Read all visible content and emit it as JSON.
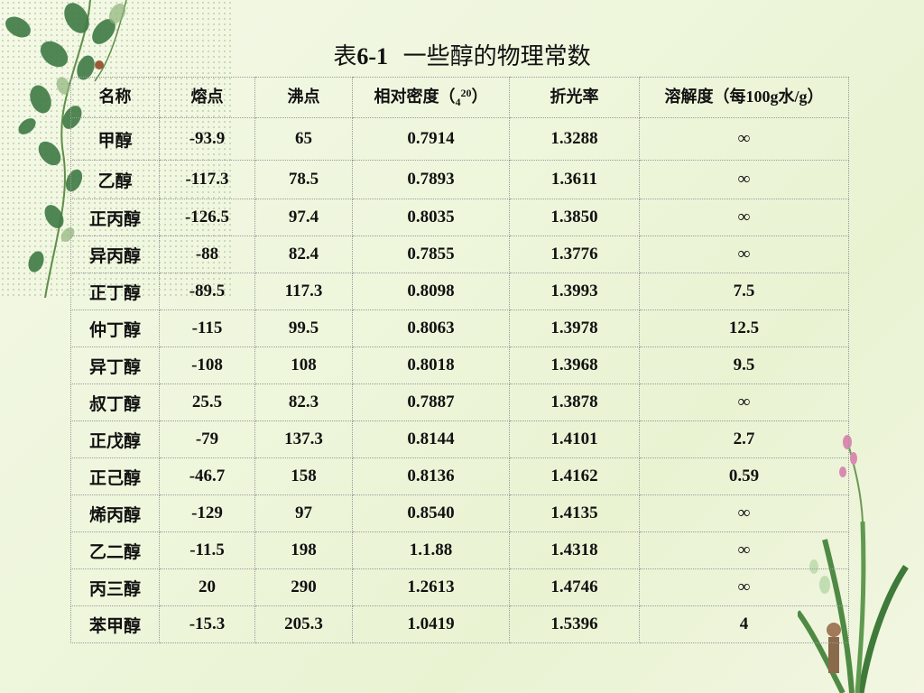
{
  "title": {
    "prefix": "表",
    "number": "6-1",
    "text": "一些醇的物理常数"
  },
  "table": {
    "headers": {
      "name": "名称",
      "mp": "熔点",
      "bp": "沸点",
      "density_label": "相对密度（",
      "density_sub": "4",
      "density_sup": "20",
      "density_close": "）",
      "refractive": "折光率",
      "solubility_label": "溶解度（每",
      "solubility_num": "100g",
      "solubility_water": "水",
      "solubility_unit": "/g",
      "solubility_close": "）"
    },
    "rows": [
      {
        "name": "甲醇",
        "mp": "-93.9",
        "bp": "65",
        "density": "0.7914",
        "refractive": "1.3288",
        "solubility": "∞"
      },
      {
        "name": "乙醇",
        "mp": "-117.3",
        "bp": "78.5",
        "density": "0.7893",
        "refractive": "1.3611",
        "solubility": "∞"
      },
      {
        "name": "正丙醇",
        "mp": "-126.5",
        "bp": "97.4",
        "density": "0.8035",
        "refractive": "1.3850",
        "solubility": "∞"
      },
      {
        "name": "异丙醇",
        "mp": "-88",
        "bp": "82.4",
        "density": "0.7855",
        "refractive": "1.3776",
        "solubility": "∞"
      },
      {
        "name": "正丁醇",
        "mp": "-89.5",
        "bp": "117.3",
        "density": "0.8098",
        "refractive": "1.3993",
        "solubility": "7.5"
      },
      {
        "name": "仲丁醇",
        "mp": "-115",
        "bp": "99.5",
        "density": "0.8063",
        "refractive": "1.3978",
        "solubility": "12.5"
      },
      {
        "name": "异丁醇",
        "mp": "-108",
        "bp": "108",
        "density": "0.8018",
        "refractive": "1.3968",
        "solubility": "9.5"
      },
      {
        "name": "叔丁醇",
        "mp": "25.5",
        "bp": "82.3",
        "density": "0.7887",
        "refractive": "1.3878",
        "solubility": "∞"
      },
      {
        "name": "正戊醇",
        "mp": "-79",
        "bp": "137.3",
        "density": "0.8144",
        "refractive": "1.4101",
        "solubility": "2.7"
      },
      {
        "name": "正己醇",
        "mp": "-46.7",
        "bp": "158",
        "density": "0.8136",
        "refractive": "1.4162",
        "solubility": "0.59"
      },
      {
        "name": "烯丙醇",
        "mp": "-129",
        "bp": "97",
        "density": "0.8540",
        "refractive": "1.4135",
        "solubility": "∞"
      },
      {
        "name": "乙二醇",
        "mp": "-11.5",
        "bp": "198",
        "density": "1.1.88",
        "refractive": "1.4318",
        "solubility": "∞"
      },
      {
        "name": "丙三醇",
        "mp": "20",
        "bp": "290",
        "density": "1.2613",
        "refractive": "1.4746",
        "solubility": "∞"
      },
      {
        "name": "苯甲醇",
        "mp": "-15.3",
        "bp": "205.3",
        "density": "1.0419",
        "refractive": "1.5396",
        "solubility": "4"
      }
    ]
  }
}
